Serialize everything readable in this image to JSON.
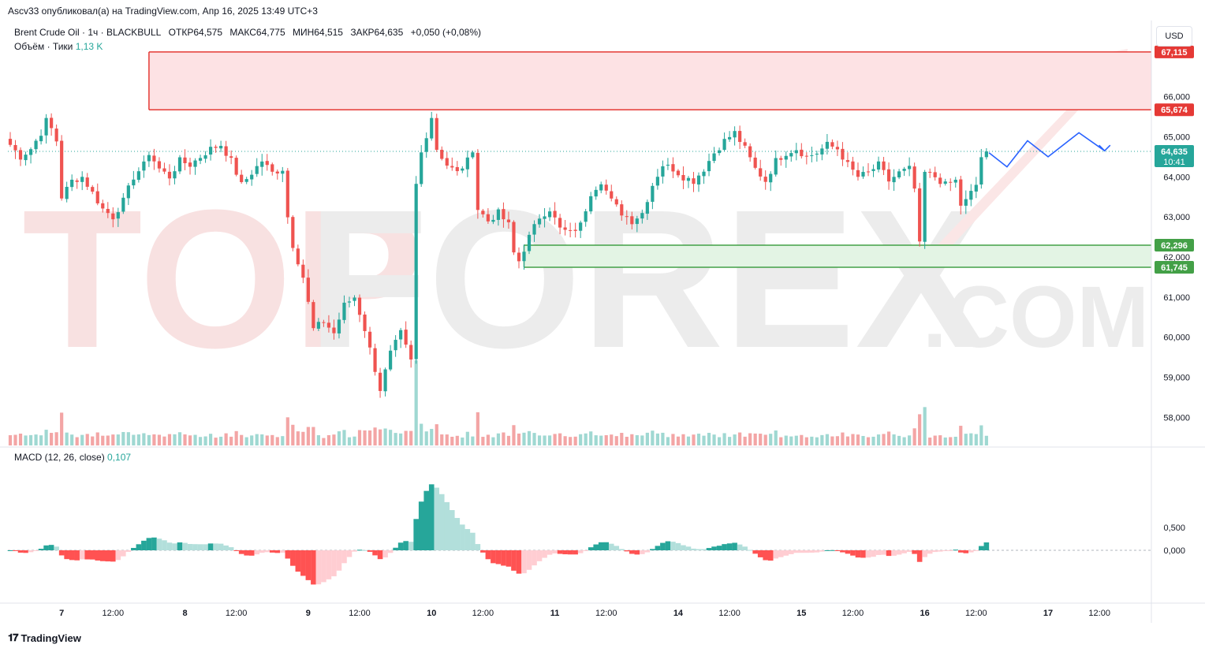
{
  "publish_line": "Ascv33 опубликовал(а) на TradingView.com, Апр 16, 2025 13:49 UTC+3",
  "legend": {
    "symbol": "Brent Crude Oil · 1ч · BLACKBULL",
    "open": "ОТКР64,575",
    "high": "МАКС64,775",
    "low": "МИН64,515",
    "close": "ЗАКР64,635",
    "change": "+0,050 (+0,08%)",
    "volume_label": "Объём · Тики",
    "volume_value": "1,13 K",
    "macd_label": "MACD (12, 26, close)",
    "macd_value": "0,107"
  },
  "currency_button": "USD",
  "brand": "TradingView",
  "watermark": "TOPFOREX",
  "watermark_suffix": ".COM",
  "colors": {
    "up": "#26a69a",
    "down": "#ef5350",
    "resistance": "#e53935",
    "support": "#43a047",
    "forecast": "#2962ff"
  },
  "chart_data": {
    "type": "candlestick",
    "price_ylim": [
      57300,
      67900
    ],
    "y_ticks": [
      {
        "value": 58000,
        "label": "58,000"
      },
      {
        "value": 59000,
        "label": "59,000"
      },
      {
        "value": 60000,
        "label": "60,000"
      },
      {
        "value": 61000,
        "label": "61,000"
      },
      {
        "value": 62000,
        "label": "62,000"
      },
      {
        "value": 63000,
        "label": "63,000"
      },
      {
        "value": 64000,
        "label": "64,000"
      },
      {
        "value": 65000,
        "label": "65,000"
      },
      {
        "value": 66000,
        "label": "66,000"
      }
    ],
    "price_labels": [
      {
        "value": 67115,
        "label": "67,115",
        "kind": "resistance"
      },
      {
        "value": 65674,
        "label": "65,674",
        "kind": "resistance"
      },
      {
        "value": 64635,
        "label": "64,635",
        "sub": "10:41",
        "kind": "last"
      },
      {
        "value": 62296,
        "label": "62,296",
        "kind": "support"
      },
      {
        "value": 61745,
        "label": "61,745",
        "kind": "support"
      }
    ],
    "resistance_zone": {
      "top": 67115,
      "bottom": 65674,
      "start_hour": 27
    },
    "support_zone": {
      "top": 62296,
      "bottom": 61745,
      "start_hour": 100
    },
    "last_price": 64635,
    "x_ticks": [
      {
        "hour": 10,
        "label": "7"
      },
      {
        "hour": 20,
        "label": "12:00"
      },
      {
        "hour": 34,
        "label": "8"
      },
      {
        "hour": 44,
        "label": "12:00"
      },
      {
        "hour": 58,
        "label": "9"
      },
      {
        "hour": 68,
        "label": "12:00"
      },
      {
        "hour": 82,
        "label": "10"
      },
      {
        "hour": 92,
        "label": "12:00"
      },
      {
        "hour": 106,
        "label": "11"
      },
      {
        "hour": 116,
        "label": "12:00"
      },
      {
        "hour": 130,
        "label": "14"
      },
      {
        "hour": 140,
        "label": "12:00"
      },
      {
        "hour": 154,
        "label": "15"
      },
      {
        "hour": 164,
        "label": "12:00"
      },
      {
        "hour": 178,
        "label": "16"
      },
      {
        "hour": 188,
        "label": "12:00"
      },
      {
        "hour": 202,
        "label": "17"
      },
      {
        "hour": 212,
        "label": "12:00"
      }
    ],
    "forecast_path": [
      {
        "hour": 190.5,
        "price": 64600
      },
      {
        "hour": 194,
        "price": 64250
      },
      {
        "hour": 198,
        "price": 64900
      },
      {
        "hour": 202,
        "price": 64500
      },
      {
        "hour": 208,
        "price": 65100
      },
      {
        "hour": 213,
        "price": 64650
      }
    ],
    "macd_ylim": [
      -1100,
      2200
    ],
    "macd_ticks": [
      {
        "value": 500,
        "label": "0,500"
      },
      {
        "value": 0,
        "label": "0,000"
      }
    ],
    "waypoints": [
      [
        0,
        64800
      ],
      [
        2,
        64500
      ],
      [
        4,
        64700
      ],
      [
        6,
        65100
      ],
      [
        7,
        65400
      ],
      [
        8,
        65200
      ],
      [
        9,
        64900
      ],
      [
        10,
        63500
      ],
      [
        12,
        63900
      ],
      [
        14,
        64000
      ],
      [
        16,
        63600
      ],
      [
        18,
        63200
      ],
      [
        20,
        63000
      ],
      [
        22,
        63400
      ],
      [
        24,
        64000
      ],
      [
        26,
        64300
      ],
      [
        27,
        64600
      ],
      [
        29,
        64200
      ],
      [
        31,
        64000
      ],
      [
        33,
        64400
      ],
      [
        35,
        64300
      ],
      [
        37,
        64500
      ],
      [
        39,
        64700
      ],
      [
        41,
        64800
      ],
      [
        43,
        64400
      ],
      [
        45,
        63800
      ],
      [
        47,
        64100
      ],
      [
        49,
        64400
      ],
      [
        51,
        64100
      ],
      [
        53,
        64200
      ],
      [
        54,
        63000
      ],
      [
        55,
        62300
      ],
      [
        57,
        61500
      ],
      [
        59,
        60200
      ],
      [
        61,
        60400
      ],
      [
        63,
        60100
      ],
      [
        65,
        60800
      ],
      [
        67,
        61000
      ],
      [
        69,
        60200
      ],
      [
        71,
        59200
      ],
      [
        72,
        58700
      ],
      [
        74,
        59600
      ],
      [
        76,
        60100
      ],
      [
        78,
        59400
      ],
      [
        79,
        63800
      ],
      [
        80,
        64600
      ],
      [
        82,
        65500
      ],
      [
        83,
        64700
      ],
      [
        85,
        64300
      ],
      [
        87,
        64100
      ],
      [
        89,
        64400
      ],
      [
        90,
        64700
      ],
      [
        91,
        63200
      ],
      [
        93,
        62900
      ],
      [
        95,
        63100
      ],
      [
        97,
        62800
      ],
      [
        98,
        62100
      ],
      [
        99,
        61900
      ],
      [
        101,
        62500
      ],
      [
        103,
        63000
      ],
      [
        105,
        63200
      ],
      [
        107,
        62700
      ],
      [
        109,
        62600
      ],
      [
        111,
        62800
      ],
      [
        113,
        63600
      ],
      [
        115,
        63900
      ],
      [
        117,
        63400
      ],
      [
        119,
        63100
      ],
      [
        121,
        62900
      ],
      [
        123,
        63100
      ],
      [
        125,
        63800
      ],
      [
        127,
        64300
      ],
      [
        129,
        64200
      ],
      [
        131,
        64000
      ],
      [
        133,
        63900
      ],
      [
        135,
        64200
      ],
      [
        137,
        64600
      ],
      [
        139,
        64900
      ],
      [
        141,
        65100
      ],
      [
        143,
        64700
      ],
      [
        145,
        64200
      ],
      [
        147,
        63900
      ],
      [
        149,
        64400
      ],
      [
        151,
        64600
      ],
      [
        153,
        64700
      ],
      [
        155,
        64500
      ],
      [
        157,
        64600
      ],
      [
        159,
        64800
      ],
      [
        161,
        64700
      ],
      [
        163,
        64300
      ],
      [
        165,
        64000
      ],
      [
        167,
        64100
      ],
      [
        169,
        64300
      ],
      [
        171,
        63900
      ],
      [
        173,
        64100
      ],
      [
        175,
        64200
      ],
      [
        176,
        63700
      ],
      [
        177,
        62300
      ],
      [
        178,
        64100
      ],
      [
        180,
        64000
      ],
      [
        182,
        63800
      ],
      [
        184,
        63900
      ],
      [
        185,
        63300
      ],
      [
        186,
        63400
      ],
      [
        188,
        63800
      ],
      [
        189,
        64500
      ],
      [
        190,
        64650
      ],
      [
        190.5,
        64635
      ]
    ]
  }
}
